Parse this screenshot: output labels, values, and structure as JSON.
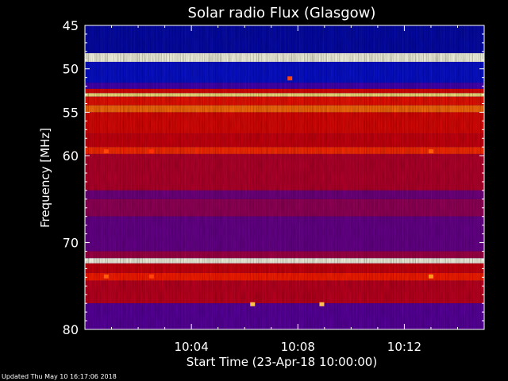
{
  "chart_data": {
    "type": "heatmap",
    "title": "Solar radio Flux (Glasgow)",
    "xlabel": "Start Time (23-Apr-18 10:00:00)",
    "ylabel": "Frequency [MHz]",
    "x_unit": "time",
    "x_range_minutes": [
      0,
      15
    ],
    "x_ticks": [
      "10:04",
      "10:08",
      "10:12"
    ],
    "x_tick_minutes": [
      4,
      8,
      12
    ],
    "y_range": [
      45,
      80
    ],
    "y_ticks": [
      45,
      50,
      55,
      60,
      70,
      80
    ],
    "y_inverted": true,
    "bands": [
      {
        "from": 45.0,
        "to": 48.2,
        "level": 0.05
      },
      {
        "from": 48.2,
        "to": 49.2,
        "level": 1.0
      },
      {
        "from": 49.2,
        "to": 51.6,
        "level": 0.08
      },
      {
        "from": 51.6,
        "to": 52.3,
        "level": 0.25
      },
      {
        "from": 52.3,
        "to": 52.8,
        "level": 0.6
      },
      {
        "from": 52.8,
        "to": 53.2,
        "level": 0.95
      },
      {
        "from": 53.2,
        "to": 54.2,
        "level": 0.65
      },
      {
        "from": 54.2,
        "to": 55.0,
        "level": 0.8
      },
      {
        "from": 55.0,
        "to": 57.5,
        "level": 0.6
      },
      {
        "from": 57.5,
        "to": 59.0,
        "level": 0.55
      },
      {
        "from": 59.0,
        "to": 59.8,
        "level": 0.72
      },
      {
        "from": 59.8,
        "to": 64.0,
        "level": 0.5
      },
      {
        "from": 64.0,
        "to": 65.0,
        "level": 0.35
      },
      {
        "from": 65.0,
        "to": 67.0,
        "level": 0.42
      },
      {
        "from": 67.0,
        "to": 71.0,
        "level": 0.33
      },
      {
        "from": 71.0,
        "to": 71.8,
        "level": 0.45
      },
      {
        "from": 71.8,
        "to": 72.4,
        "level": 1.0
      },
      {
        "from": 72.4,
        "to": 73.5,
        "level": 0.55
      },
      {
        "from": 73.5,
        "to": 74.4,
        "level": 0.7
      },
      {
        "from": 74.4,
        "to": 77.0,
        "level": 0.52
      },
      {
        "from": 77.0,
        "to": 80.0,
        "level": 0.3
      }
    ],
    "spots": [
      {
        "t": 7.7,
        "f": 51.1,
        "level": 0.75
      },
      {
        "t": 0.8,
        "f": 59.5,
        "level": 0.75
      },
      {
        "t": 2.5,
        "f": 59.5,
        "level": 0.72
      },
      {
        "t": 13.0,
        "f": 59.5,
        "level": 0.78
      },
      {
        "t": 0.8,
        "f": 73.9,
        "level": 0.78
      },
      {
        "t": 2.5,
        "f": 73.9,
        "level": 0.75
      },
      {
        "t": 13.0,
        "f": 73.9,
        "level": 0.85
      },
      {
        "t": 6.3,
        "f": 77.1,
        "level": 0.9
      },
      {
        "t": 8.9,
        "f": 77.1,
        "level": 0.9
      }
    ]
  },
  "footer": {
    "updated": "Updated Thu May 10 16:17:06 2018"
  }
}
